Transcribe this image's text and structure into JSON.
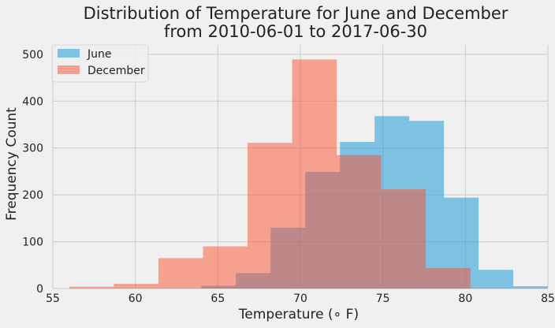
{
  "chart_data": {
    "type": "histogram",
    "title": "Distribution of Temperature for June and December",
    "subtitle": "from 2010-06-01 to 2017-06-30",
    "xlabel": "Temperature ($^\\circ F$)",
    "xlabel_display": "Temperature (∘ F)",
    "ylabel": "Frequency Count",
    "xlim": [
      55,
      85
    ],
    "ylim": [
      0,
      520
    ],
    "xticks": [
      55,
      60,
      65,
      70,
      75,
      80,
      85
    ],
    "yticks": [
      0,
      100,
      200,
      300,
      400,
      500
    ],
    "grid": true,
    "legend_position": "upper-left",
    "series": [
      {
        "name": "June",
        "color": "#30a2da",
        "opacity": 0.6,
        "bin_edges": [
          64.0,
          66.1,
          68.2,
          70.3,
          72.4,
          74.5,
          76.6,
          78.7,
          80.8,
          82.9,
          85.0
        ],
        "counts": [
          6,
          33,
          130,
          249,
          313,
          368,
          358,
          194,
          40,
          5
        ]
      },
      {
        "name": "December",
        "color": "#fc4f30",
        "opacity": 0.5,
        "bin_edges": [
          56.0,
          58.7,
          61.4,
          64.1,
          66.8,
          69.5,
          72.2,
          74.9,
          77.6,
          80.3
        ],
        "counts": [
          4,
          10,
          65,
          90,
          311,
          489,
          285,
          212,
          44
        ]
      }
    ]
  }
}
